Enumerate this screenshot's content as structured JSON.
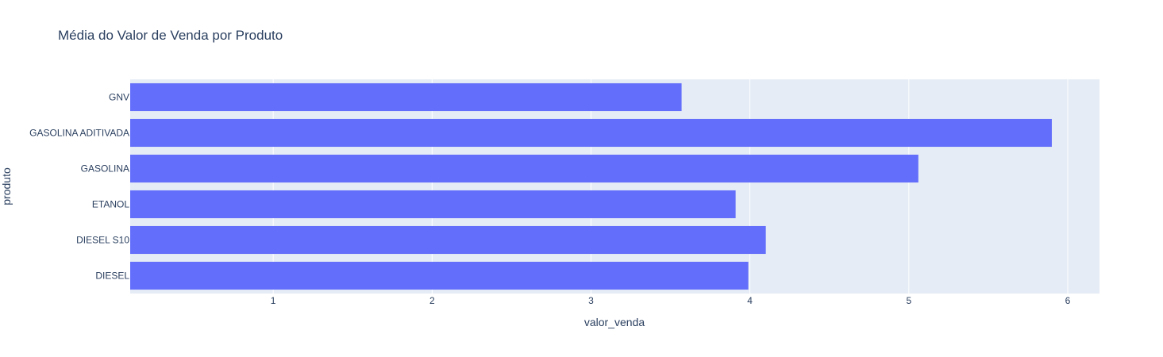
{
  "chart_data": {
    "type": "bar",
    "orientation": "horizontal",
    "title": "Média do Valor de Venda por Produto",
    "xlabel": "valor_venda",
    "ylabel": "produto",
    "categories": [
      "GNV",
      "GASOLINA ADITIVADA",
      "GASOLINA",
      "ETANOL",
      "DIESEL S10",
      "DIESEL"
    ],
    "values": [
      3.57,
      5.9,
      5.06,
      3.91,
      4.1,
      3.99
    ],
    "xlim": [
      0.1,
      6.2
    ],
    "x_ticks": [
      "1",
      "2",
      "3",
      "4",
      "5",
      "6"
    ],
    "grid": true,
    "colors": {
      "bar": "#636efa",
      "plot_background": "#e5ecf6",
      "grid": "#ffffff",
      "text": "#2a3f5f"
    }
  }
}
